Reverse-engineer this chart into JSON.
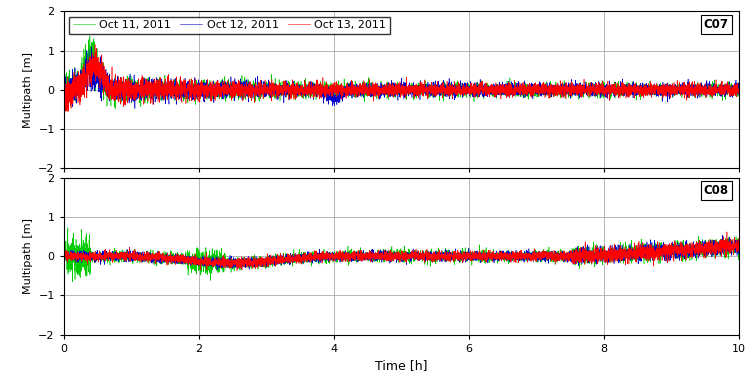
{
  "legend_labels": [
    "Oct 11, 2011",
    "Oct 12, 2011",
    "Oct 13, 2011"
  ],
  "legend_colors": [
    "#00cc00",
    "#0000cd",
    "#ff0000"
  ],
  "satellite_labels": [
    "C07",
    "C08"
  ],
  "xlabel": "Time [h]",
  "ylabel": "Multipath [m]",
  "xlim": [
    0,
    10
  ],
  "ylim": [
    -2,
    2
  ],
  "xticks": [
    0,
    2,
    4,
    6,
    8,
    10
  ],
  "yticks": [
    -2,
    -1,
    0,
    1,
    2
  ],
  "grid_color": "#aaaaaa",
  "background_color": "#ffffff",
  "linewidth": 0.4,
  "n_points": 6000,
  "seed": 7
}
